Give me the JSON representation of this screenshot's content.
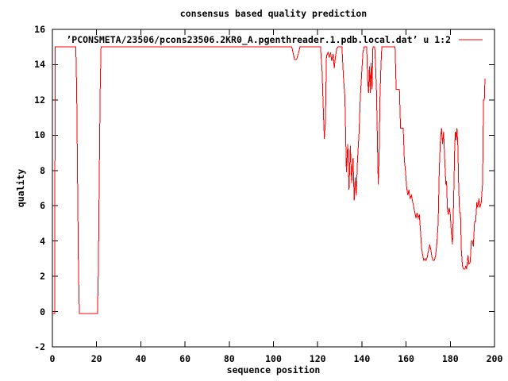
{
  "figure": {
    "title": "consensus based quality prediction",
    "background": "#ffffff",
    "border_color": "#000000"
  },
  "legend": {
    "label": "’PCONSMETA/23506/pcons23506.2KR0_A.pgenthreader.1.pdb.local.dat’ u 1:2",
    "line_color": "#ff0000"
  },
  "axes": {
    "x": {
      "label": "sequence position",
      "ticks": [
        "0",
        "20",
        "40",
        "60",
        "80",
        "100",
        "120",
        "140",
        "160",
        "180",
        "200"
      ],
      "tick_values": [
        0,
        20,
        40,
        60,
        80,
        100,
        120,
        140,
        160,
        180,
        200
      ]
    },
    "y": {
      "label": "quality",
      "ticks": [
        "-2",
        "0",
        "2",
        "4",
        "6",
        "8",
        "10",
        "12",
        "14",
        "16"
      ],
      "tick_values": [
        -2,
        0,
        2,
        4,
        6,
        8,
        10,
        12,
        14,
        16
      ]
    }
  },
  "chart_data": {
    "type": "line",
    "title": "consensus based quality prediction",
    "xlabel": "sequence position",
    "ylabel": "quality",
    "xlim": [
      0,
      200
    ],
    "ylim": [
      -2,
      16
    ],
    "grid": false,
    "legend_position": "top-right-inside",
    "series": [
      {
        "name": "’PCONSMETA/23506/pcons23506.2KR0_A.pgenthreader.1.pdb.local.dat’ u 1:2",
        "color": "#ff0000",
        "points": [
          [
            0,
            -0.1
          ],
          [
            1,
            -0.1
          ],
          [
            1.3,
            15
          ],
          [
            10.6,
            15
          ],
          [
            11,
            12.5
          ],
          [
            11.4,
            7.5
          ],
          [
            11.8,
            2.3
          ],
          [
            12.2,
            -0.1
          ],
          [
            20.4,
            -0.1
          ],
          [
            20.8,
            2.3
          ],
          [
            21.2,
            7.5
          ],
          [
            21.6,
            12.5
          ],
          [
            22,
            15
          ],
          [
            108.3,
            15
          ],
          [
            109,
            14.6
          ],
          [
            109.5,
            14.3
          ],
          [
            110.5,
            14.3
          ],
          [
            111.2,
            14.6
          ],
          [
            112,
            15
          ],
          [
            121.3,
            15
          ],
          [
            122,
            13.6
          ],
          [
            122.5,
            11.6
          ],
          [
            123,
            9.8
          ],
          [
            123.5,
            10.7
          ],
          [
            124,
            14.5
          ],
          [
            124.7,
            14.7
          ],
          [
            125.2,
            14.4
          ],
          [
            125.8,
            14.7
          ],
          [
            126.4,
            14.2
          ],
          [
            127,
            14.6
          ],
          [
            127.5,
            13.8
          ],
          [
            128,
            14.4
          ],
          [
            128.6,
            14.9
          ],
          [
            129.2,
            15
          ],
          [
            131,
            15
          ],
          [
            131.7,
            13.2
          ],
          [
            132.3,
            12.2
          ],
          [
            133,
            7.9
          ],
          [
            133.6,
            9.5
          ],
          [
            134.2,
            6.9
          ],
          [
            134.8,
            9.4
          ],
          [
            135.4,
            7.3
          ],
          [
            136,
            8.7
          ],
          [
            136.5,
            6.3
          ],
          [
            137,
            7.6
          ],
          [
            137.5,
            6.6
          ],
          [
            138,
            8.5
          ],
          [
            138.7,
            10.1
          ],
          [
            139.3,
            12.2
          ],
          [
            140,
            13.7
          ],
          [
            140.5,
            14.7
          ],
          [
            141,
            15
          ],
          [
            142.2,
            15
          ],
          [
            142.6,
            13.2
          ],
          [
            143,
            12.4
          ],
          [
            143.4,
            13.9
          ],
          [
            143.8,
            12.4
          ],
          [
            144.2,
            14.1
          ],
          [
            144.6,
            12.6
          ],
          [
            145,
            15
          ],
          [
            145.8,
            15
          ],
          [
            146.2,
            13.9
          ],
          [
            146.6,
            12.5
          ],
          [
            147,
            9.9
          ],
          [
            147.4,
            7.2
          ],
          [
            147.8,
            8.7
          ],
          [
            148.2,
            12.1
          ],
          [
            148.6,
            13.9
          ],
          [
            149,
            15
          ],
          [
            155,
            15
          ],
          [
            155.5,
            12.6
          ],
          [
            157,
            12.6
          ],
          [
            157.5,
            10.4
          ],
          [
            158.7,
            10.4
          ],
          [
            159.2,
            8.6
          ],
          [
            159.7,
            8.0
          ],
          [
            160.3,
            7.0
          ],
          [
            160.8,
            6.6
          ],
          [
            161.3,
            6.9
          ],
          [
            161.8,
            6.4
          ],
          [
            162.4,
            6.6
          ],
          [
            163,
            6.2
          ],
          [
            163.5,
            5.9
          ],
          [
            164,
            5.6
          ],
          [
            164.5,
            5.3
          ],
          [
            165,
            5.6
          ],
          [
            165.5,
            5.3
          ],
          [
            166,
            5.5
          ],
          [
            166.5,
            4.6
          ],
          [
            167,
            3.6
          ],
          [
            167.5,
            3.2
          ],
          [
            168,
            2.9
          ],
          [
            168.5,
            3.0
          ],
          [
            169,
            2.9
          ],
          [
            169.6,
            3.1
          ],
          [
            170.2,
            3.5
          ],
          [
            170.7,
            3.8
          ],
          [
            171.2,
            3.5
          ],
          [
            171.7,
            3.1
          ],
          [
            172.2,
            2.9
          ],
          [
            172.8,
            2.9
          ],
          [
            173.4,
            3.2
          ],
          [
            174,
            4.0
          ],
          [
            174.5,
            5.0
          ],
          [
            175,
            8.0
          ],
          [
            175.5,
            9.7
          ],
          [
            176,
            10.4
          ],
          [
            176.5,
            9.5
          ],
          [
            177,
            10.2
          ],
          [
            177.5,
            8.6
          ],
          [
            178,
            7.2
          ],
          [
            178.3,
            7.4
          ],
          [
            178.7,
            5.8
          ],
          [
            179.1,
            5.5
          ],
          [
            179.5,
            5.9
          ],
          [
            180,
            5.5
          ],
          [
            180.5,
            4.4
          ],
          [
            181,
            3.8
          ],
          [
            181.5,
            6.3
          ],
          [
            182,
            9.4
          ],
          [
            182.3,
            10.2
          ],
          [
            182.6,
            9.7
          ],
          [
            183,
            10.4
          ],
          [
            183.4,
            9.4
          ],
          [
            183.8,
            7.0
          ],
          [
            184.2,
            5.6
          ],
          [
            184.6,
            5.6
          ],
          [
            185,
            3.5
          ],
          [
            185.5,
            2.6
          ],
          [
            186,
            2.4
          ],
          [
            186.6,
            2.4
          ],
          [
            187,
            2.6
          ],
          [
            187.4,
            2.4
          ],
          [
            188,
            3.2
          ],
          [
            188.4,
            2.7
          ],
          [
            189,
            2.8
          ],
          [
            189.5,
            4.0
          ],
          [
            190,
            4.0
          ],
          [
            190.4,
            3.7
          ],
          [
            191,
            5.1
          ],
          [
            191.5,
            5.1
          ],
          [
            192,
            6.2
          ],
          [
            192.4,
            5.9
          ],
          [
            193,
            6.4
          ],
          [
            193.4,
            5.9
          ],
          [
            194,
            6.2
          ],
          [
            194.6,
            7.3
          ],
          [
            195,
            12.0
          ],
          [
            195.4,
            12.0
          ],
          [
            195.7,
            13.2
          ]
        ]
      }
    ]
  }
}
